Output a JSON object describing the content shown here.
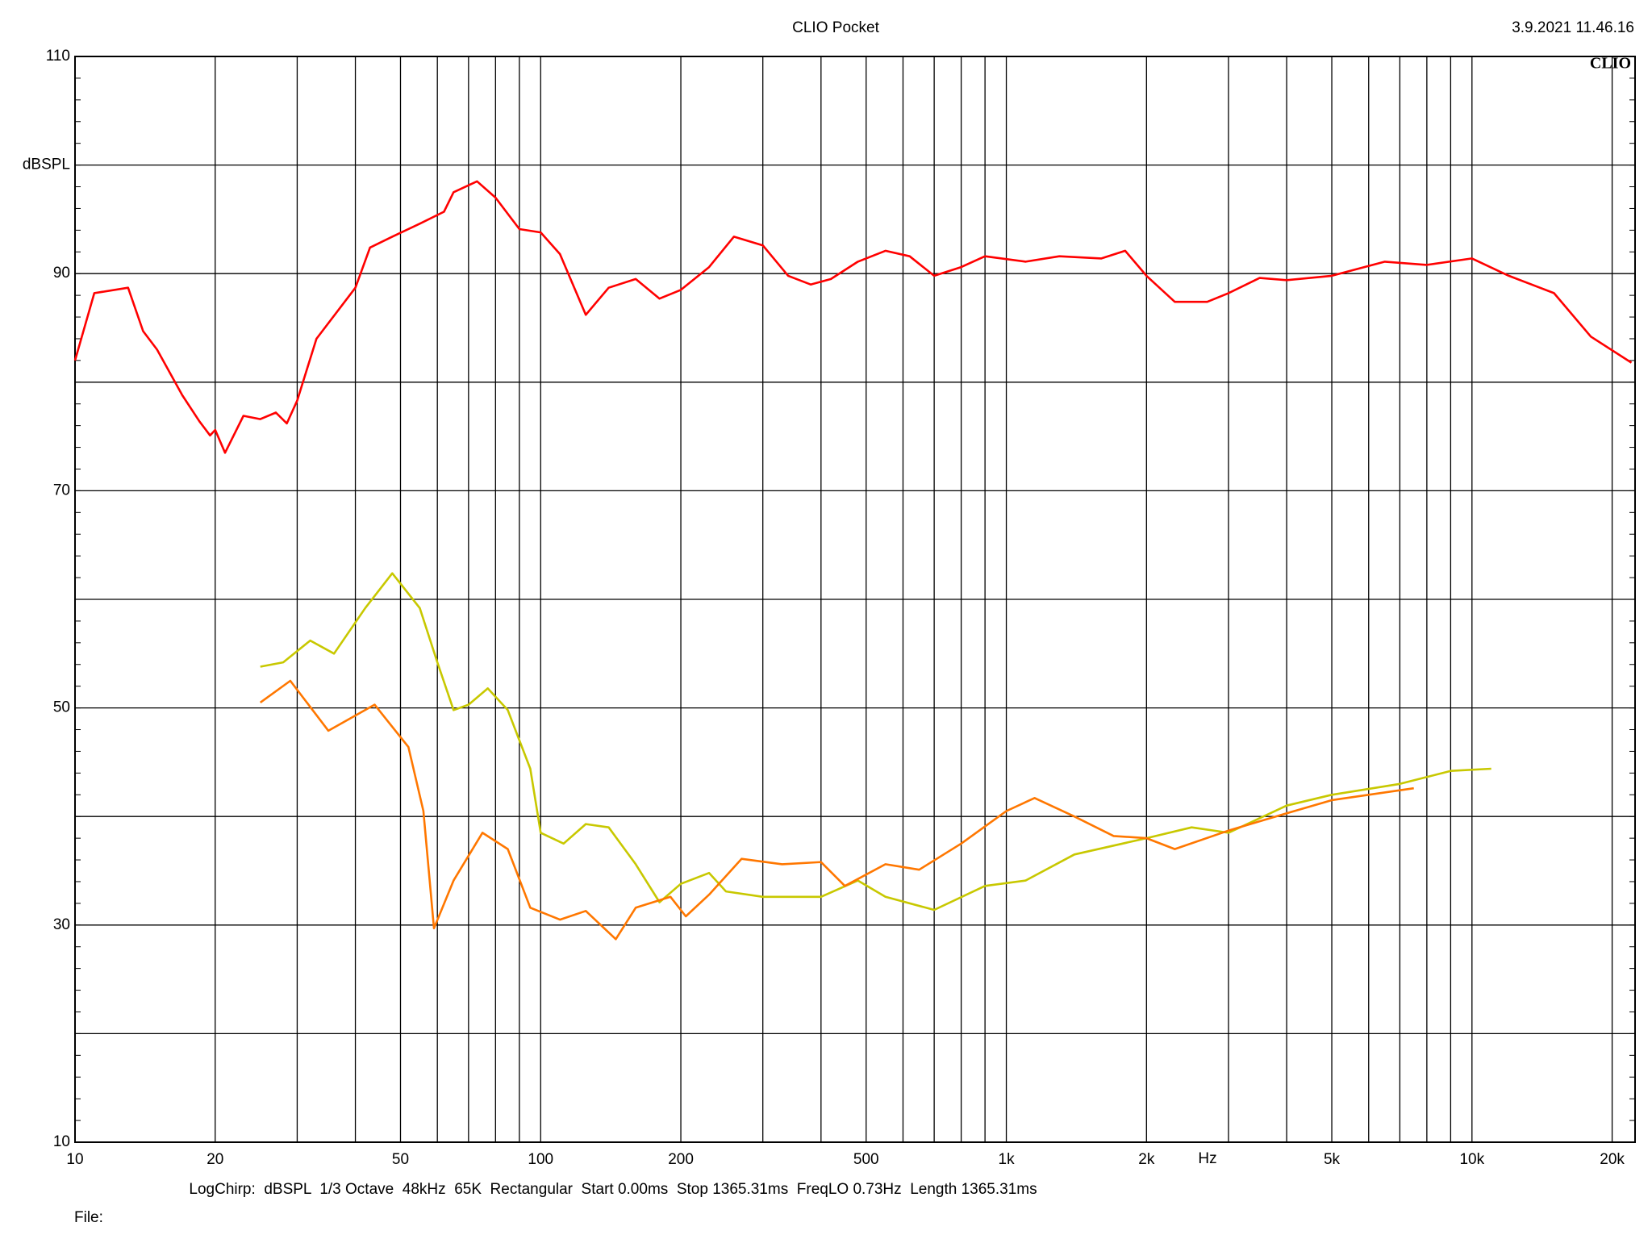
{
  "chart_data": {
    "type": "line",
    "title": "CLIO Pocket",
    "date": "3.9.2021 11.46.16",
    "logo": "CLIO",
    "ylabel": "dBSPL",
    "xlabel": "Hz",
    "footer": "LogChirp:  dBSPL  1/3 Octave  48kHz  65K  Rectangular  Start 0.00ms  Stop 1365.31ms  FreqLO 0.73Hz  Length 1365.31ms",
    "file_label": "File:",
    "xscale": "log",
    "grid": true,
    "xlim": [
      10,
      22400
    ],
    "ylim": [
      10,
      110
    ],
    "xticks": [
      10,
      20,
      50,
      100,
      200,
      500,
      {
        "value": 1000,
        "label": "1k"
      },
      {
        "value": 2000,
        "label": "2k"
      },
      {
        "value": 5000,
        "label": "5k"
      },
      {
        "value": 10000,
        "label": "10k"
      },
      {
        "value": 20000,
        "label": "20k"
      }
    ],
    "x_minor_ticks": [
      30,
      40,
      60,
      70,
      80,
      90,
      300,
      400,
      600,
      700,
      800,
      900,
      3000,
      4000,
      6000,
      7000,
      8000,
      9000
    ],
    "yticks": [
      10,
      30,
      50,
      70,
      90,
      110
    ],
    "y_minor_ticks": [
      20,
      40,
      60,
      80,
      100
    ],
    "series": [
      {
        "color": "#ff0000",
        "x": [
          10,
          11,
          13,
          14,
          15,
          17,
          18.5,
          19.5,
          20,
          21,
          23,
          25,
          27,
          28.5,
          30,
          33,
          40,
          43,
          48,
          55,
          62,
          65,
          73,
          80,
          90,
          100,
          110,
          125,
          140,
          160,
          180,
          200,
          230,
          260,
          300,
          340,
          380,
          420,
          480,
          550,
          620,
          700,
          800,
          900,
          1100,
          1300,
          1600,
          1800,
          2000,
          2300,
          2700,
          3000,
          3500,
          4000,
          5000,
          6500,
          8000,
          10000,
          12000,
          15000,
          18000,
          22000
        ],
        "values": [
          82,
          88.2,
          88.7,
          84.7,
          83,
          78.8,
          76.4,
          75.1,
          75.6,
          73.5,
          76.9,
          76.6,
          77.2,
          76.2,
          78.3,
          84,
          88.7,
          92.4,
          93.4,
          94.6,
          95.7,
          97.5,
          98.5,
          97,
          94.1,
          93.8,
          91.8,
          86.2,
          88.7,
          89.5,
          87.7,
          88.5,
          90.6,
          93.4,
          92.6,
          89.8,
          89,
          89.5,
          91.1,
          92.1,
          91.6,
          89.8,
          90.6,
          91.6,
          91.1,
          91.6,
          91.4,
          92.1,
          89.8,
          87.4,
          87.4,
          88.2,
          89.6,
          89.4,
          89.8,
          91.1,
          90.8,
          91.4,
          89.8,
          88.2,
          84.2,
          81.8
        ]
      },
      {
        "color": "#c8c800",
        "x": [
          25,
          28,
          32,
          36,
          42,
          48,
          55,
          60,
          65,
          70,
          77,
          85,
          95,
          100,
          112,
          125,
          140,
          160,
          180,
          200,
          230,
          250,
          300,
          400,
          480,
          550,
          700,
          900,
          1100,
          1400,
          2000,
          2500,
          3000,
          4000,
          5000,
          7000,
          9000,
          11000
        ],
        "values": [
          53.8,
          54.2,
          56.2,
          55,
          59.2,
          62.4,
          59.2,
          54.2,
          49.8,
          50.3,
          51.8,
          49.8,
          44.4,
          38.5,
          37.5,
          39.3,
          39,
          35.6,
          32.1,
          33.8,
          34.8,
          33.1,
          32.6,
          32.6,
          34.1,
          32.6,
          31.4,
          33.6,
          34.1,
          36.5,
          38,
          39,
          38.5,
          41,
          42,
          43,
          44.2,
          44.4
        ]
      },
      {
        "color": "#ff7700",
        "x": [
          25,
          29,
          35,
          44,
          52,
          56,
          59,
          65,
          75,
          85,
          95,
          110,
          125,
          145,
          160,
          190,
          205,
          230,
          270,
          330,
          400,
          450,
          550,
          650,
          800,
          1000,
          1150,
          1400,
          1700,
          2000,
          2300,
          3000,
          4000,
          5000,
          7500
        ],
        "values": [
          50.5,
          52.5,
          47.9,
          50.3,
          46.4,
          40.5,
          29.7,
          34.1,
          38.5,
          37,
          31.6,
          30.5,
          31.3,
          28.7,
          31.6,
          32.6,
          30.8,
          32.8,
          36.1,
          35.6,
          35.8,
          33.6,
          35.6,
          35.1,
          37.5,
          40.5,
          41.7,
          40,
          38.2,
          38,
          37,
          38.7,
          40.3,
          41.5,
          42.6
        ]
      }
    ]
  }
}
